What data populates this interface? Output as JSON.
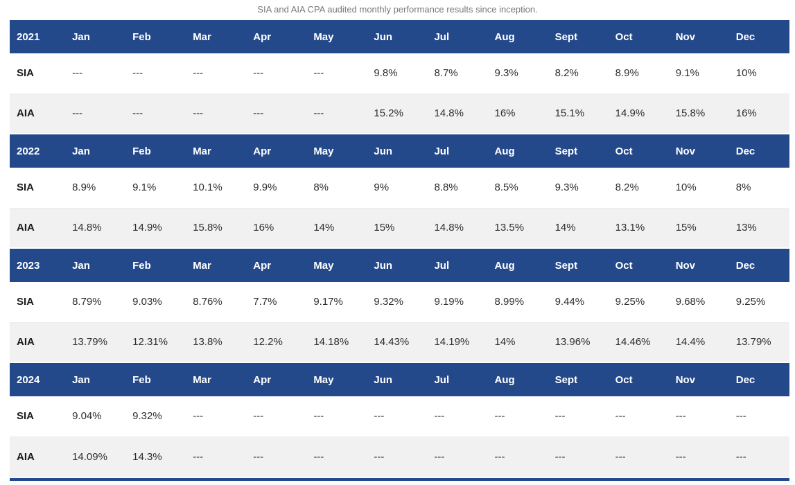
{
  "chart_data": {
    "type": "table",
    "title": "SIA and AIA CPA audited monthly performance results since inception.",
    "months": [
      "Jan",
      "Feb",
      "Mar",
      "Apr",
      "May",
      "Jun",
      "Jul",
      "Aug",
      "Sept",
      "Oct",
      "Nov",
      "Dec"
    ],
    "sections": [
      {
        "year": "2021",
        "rows": [
          {
            "label": "SIA",
            "values": [
              "---",
              "---",
              "---",
              "---",
              "---",
              "9.8%",
              "8.7%",
              "9.3%",
              "8.2%",
              "8.9%",
              "9.1%",
              "10%"
            ]
          },
          {
            "label": "AIA",
            "values": [
              "---",
              "---",
              "---",
              "---",
              "---",
              "15.2%",
              "14.8%",
              "16%",
              "15.1%",
              "14.9%",
              "15.8%",
              "16%"
            ]
          }
        ]
      },
      {
        "year": "2022",
        "rows": [
          {
            "label": "SIA",
            "values": [
              "8.9%",
              "9.1%",
              "10.1%",
              "9.9%",
              "8%",
              "9%",
              "8.8%",
              "8.5%",
              "9.3%",
              "8.2%",
              "10%",
              "8%"
            ]
          },
          {
            "label": "AIA",
            "values": [
              "14.8%",
              "14.9%",
              "15.8%",
              "16%",
              "14%",
              "15%",
              "14.8%",
              "13.5%",
              "14%",
              "13.1%",
              "15%",
              "13%"
            ]
          }
        ]
      },
      {
        "year": "2023",
        "rows": [
          {
            "label": "SIA",
            "values": [
              "8.79%",
              "9.03%",
              "8.76%",
              "7.7%",
              "9.17%",
              "9.32%",
              "9.19%",
              "8.99%",
              "9.44%",
              "9.25%",
              "9.68%",
              "9.25%"
            ]
          },
          {
            "label": "AIA",
            "values": [
              "13.79%",
              "12.31%",
              "13.8%",
              "12.2%",
              "14.18%",
              "14.43%",
              "14.19%",
              "14%",
              "13.96%",
              "14.46%",
              "14.4%",
              "13.79%"
            ]
          }
        ]
      },
      {
        "year": "2024",
        "rows": [
          {
            "label": "SIA",
            "values": [
              "9.04%",
              "9.32%",
              "---",
              "---",
              "---",
              "---",
              "---",
              "---",
              "---",
              "---",
              "---",
              "---"
            ]
          },
          {
            "label": "AIA",
            "values": [
              "14.09%",
              "14.3%",
              "---",
              "---",
              "---",
              "---",
              "---",
              "---",
              "---",
              "---",
              "---",
              "---"
            ]
          }
        ]
      }
    ],
    "layout_hints": {
      "columns_per_section": 13,
      "first_column": "year-or-series-label",
      "missing_value_marker": "---"
    }
  },
  "colors": {
    "header_blue": "#24498a",
    "header_text": "#ffffff",
    "alt_row_gray": "#f1f1f2",
    "caption_gray": "#77787c",
    "value_text": "#2e2e2e",
    "bottom_bar_blue": "#24498a"
  }
}
